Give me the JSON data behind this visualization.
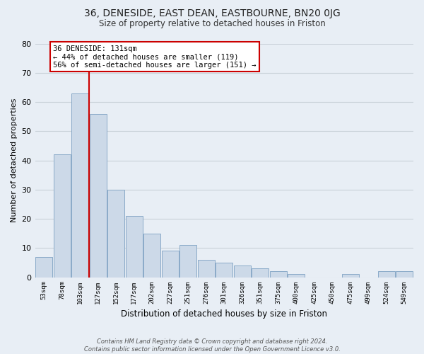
{
  "title": "36, DENESIDE, EAST DEAN, EASTBOURNE, BN20 0JG",
  "subtitle": "Size of property relative to detached houses in Friston",
  "xlabel": "Distribution of detached houses by size in Friston",
  "ylabel": "Number of detached properties",
  "bar_color": "#ccd9e8",
  "bar_edge_color": "#8aaac8",
  "categories": [
    "53sqm",
    "78sqm",
    "103sqm",
    "127sqm",
    "152sqm",
    "177sqm",
    "202sqm",
    "227sqm",
    "251sqm",
    "276sqm",
    "301sqm",
    "326sqm",
    "351sqm",
    "375sqm",
    "400sqm",
    "425sqm",
    "450sqm",
    "475sqm",
    "499sqm",
    "524sqm",
    "549sqm"
  ],
  "values": [
    7,
    42,
    63,
    56,
    30,
    21,
    15,
    9,
    11,
    6,
    5,
    4,
    3,
    2,
    1,
    0,
    0,
    1,
    0,
    2,
    2
  ],
  "vline_color": "#cc0000",
  "vline_index": 3,
  "annotation_line1": "36 DENESIDE: 131sqm",
  "annotation_line2": "← 44% of detached houses are smaller (119)",
  "annotation_line3": "56% of semi-detached houses are larger (151) →",
  "annotation_box_color": "#ffffff",
  "annotation_box_edge": "#cc0000",
  "ylim": [
    0,
    80
  ],
  "yticks": [
    0,
    10,
    20,
    30,
    40,
    50,
    60,
    70,
    80
  ],
  "footnote_line1": "Contains HM Land Registry data © Crown copyright and database right 2024.",
  "footnote_line2": "Contains public sector information licensed under the Open Government Licence v3.0.",
  "bg_color": "#e8eef5",
  "plot_bg_color": "#e8eef5",
  "grid_color": "#c8d0d8"
}
